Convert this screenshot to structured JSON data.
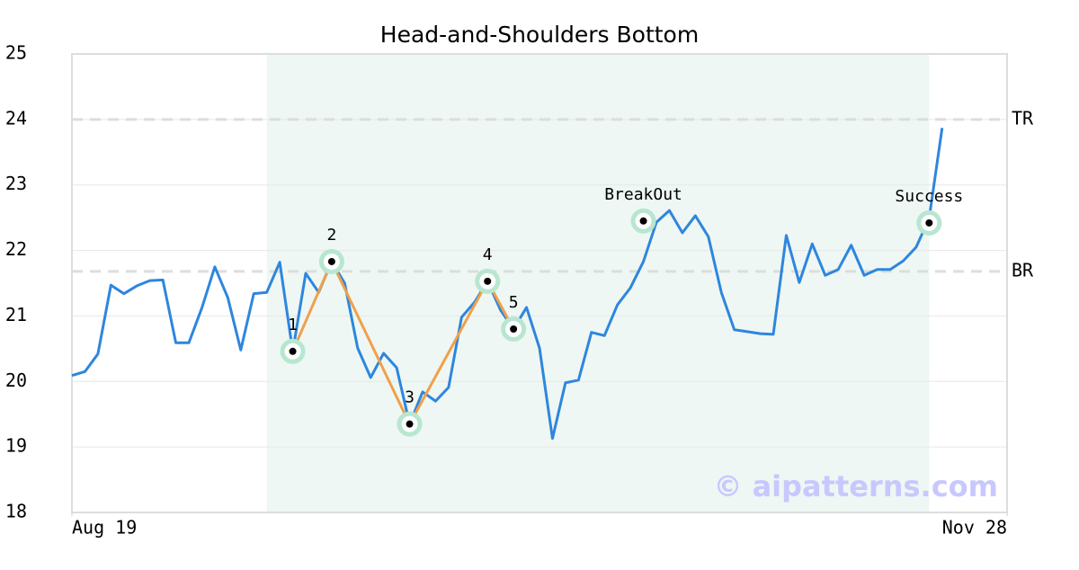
{
  "chart_data": {
    "type": "line",
    "title": "Head-and-Shoulders Bottom",
    "x": [
      0,
      1,
      2,
      3,
      4,
      5,
      6,
      7,
      8,
      9,
      10,
      11,
      12,
      13,
      14,
      15,
      16,
      17,
      18,
      19,
      20,
      21,
      22,
      23,
      24,
      25,
      26,
      27,
      28,
      29,
      30,
      31,
      32,
      33,
      34,
      35,
      36,
      37,
      38,
      39,
      40,
      41,
      42,
      43,
      44,
      45,
      46,
      47,
      48,
      49,
      50,
      51,
      52,
      53,
      54,
      55,
      56,
      57,
      58,
      59,
      60,
      61,
      62,
      63,
      64,
      65,
      66,
      67
    ],
    "values": [
      20.09,
      20.15,
      20.42,
      21.47,
      21.34,
      21.46,
      21.54,
      21.55,
      20.59,
      20.59,
      21.12,
      21.75,
      21.28,
      20.48,
      21.34,
      21.36,
      21.82,
      20.46,
      21.65,
      21.36,
      21.83,
      21.5,
      20.51,
      20.06,
      20.43,
      20.21,
      19.35,
      19.84,
      19.7,
      19.91,
      20.98,
      21.21,
      21.53,
      21.09,
      20.8,
      21.13,
      20.51,
      19.13,
      19.98,
      20.02,
      20.75,
      20.7,
      21.17,
      21.43,
      21.83,
      22.43,
      22.61,
      22.27,
      22.53,
      22.21,
      21.36,
      20.79,
      20.76,
      20.73,
      20.72,
      22.23,
      21.51,
      22.1,
      21.62,
      21.71,
      22.08,
      21.62,
      21.71,
      21.71,
      21.84,
      22.05,
      22.49,
      23.87
    ],
    "color": "#2e86de",
    "xlim": [
      0,
      72
    ],
    "xticks": [
      {
        "value": 0,
        "label": "Aug 19"
      },
      {
        "value": 72,
        "label": "Nov 28"
      }
    ],
    "ylim": [
      18,
      25
    ],
    "yticks": [
      18,
      19,
      20,
      21,
      22,
      23,
      24,
      25
    ],
    "grid": true,
    "shaded_range": [
      15,
      66
    ],
    "pattern_color": "#f0a04b",
    "pattern_points": [
      {
        "label": "1",
        "x": 17,
        "y": 20.46
      },
      {
        "label": "2",
        "x": 20,
        "y": 21.83
      },
      {
        "label": "3",
        "x": 26,
        "y": 19.35
      },
      {
        "label": "4",
        "x": 32,
        "y": 21.53
      },
      {
        "label": "5",
        "x": 34,
        "y": 20.8
      }
    ],
    "markers": [
      {
        "label": "BreakOut",
        "x": 44,
        "y": 22.45
      },
      {
        "label": "Success",
        "x": 66,
        "y": 22.42
      }
    ],
    "hlines": [
      {
        "label": "TR",
        "value": 24
      },
      {
        "label": "BR",
        "value": 21.68
      }
    ],
    "watermark": "© aipatterns.com"
  }
}
